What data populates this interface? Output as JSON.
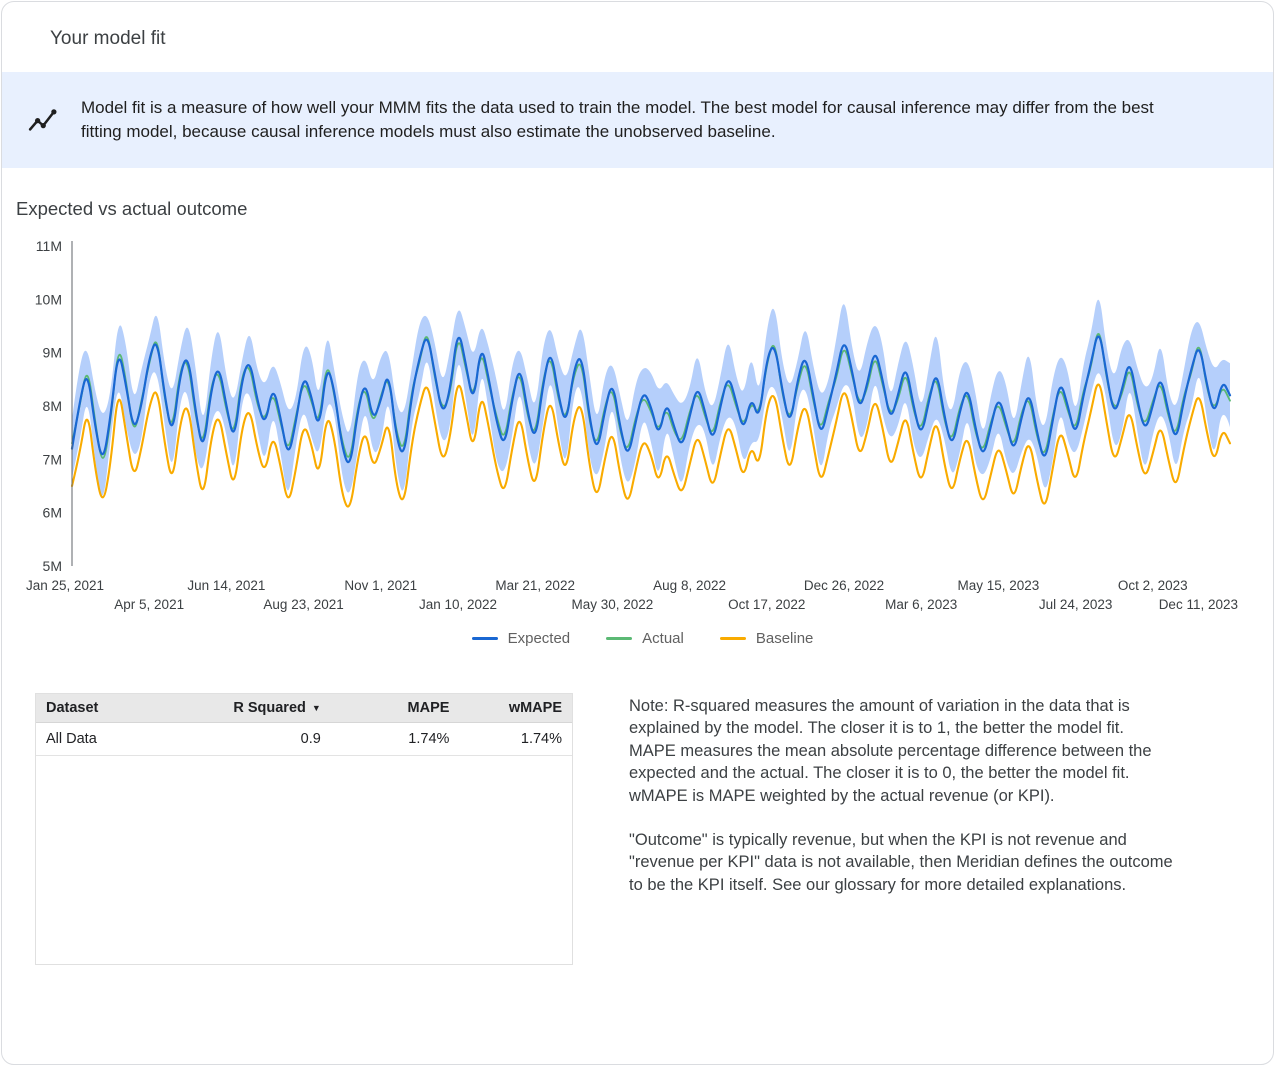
{
  "page": {
    "title": "Your model fit"
  },
  "banner": {
    "icon": "insights-icon",
    "bg_color": "#e8f0fe",
    "text": "Model fit is a measure of how well your MMM fits the data used to train the model. The best model for causal inference may differ from the best fitting model, because causal inference models must also estimate the unobserved baseline."
  },
  "section": {
    "title": "Expected vs actual outcome"
  },
  "chart_data": {
    "type": "line",
    "title": "Expected vs actual outcome",
    "unit": "M",
    "ylim": [
      5,
      11
    ],
    "yticks": [
      "5M",
      "6M",
      "7M",
      "8M",
      "9M",
      "10M",
      "11M"
    ],
    "xtick_step": 10,
    "xtick_labels": [
      "Jan 25, 2021",
      "Apr 5, 2021",
      "Jun 14, 2021",
      "Aug 23, 2021",
      "Nov 1, 2021",
      "Jan 10, 2022",
      "Mar 21, 2022",
      "May 30, 2022",
      "Aug 8, 2022",
      "Oct 17, 2022",
      "Dec 26, 2022",
      "Mar 6, 2023",
      "May 15, 2023",
      "Jul 24, 2023",
      "Oct 2, 2023",
      "Dec 11, 2023"
    ],
    "legend": [
      {
        "name": "Expected",
        "color": "#1967d2"
      },
      {
        "name": "Actual",
        "color": "#5bb974"
      },
      {
        "name": "Baseline",
        "color": "#f9ab00"
      }
    ],
    "ci": {
      "series": "Expected",
      "color": "#a8c7fa",
      "opacity": 0.85,
      "halfwidths_cycle": [
        0.55,
        0.75,
        0.45,
        0.65,
        0.85,
        0.4,
        0.6,
        0.8,
        0.5,
        0.7,
        0.35,
        0.6
      ]
    },
    "series": [
      {
        "name": "Expected",
        "values": [
          7.2,
          8.1,
          8.7,
          7.6,
          6.9,
          7.8,
          9.1,
          8.4,
          7.5,
          8.0,
          8.9,
          9.3,
          8.2,
          7.4,
          8.6,
          9.0,
          7.9,
          7.1,
          8.3,
          8.8,
          8.0,
          7.3,
          8.5,
          8.9,
          8.1,
          7.6,
          8.4,
          7.8,
          7.0,
          7.7,
          8.6,
          8.2,
          7.5,
          8.8,
          8.3,
          7.2,
          6.8,
          7.9,
          8.5,
          7.7,
          8.1,
          8.7,
          7.4,
          7.0,
          8.2,
          8.9,
          9.4,
          8.6,
          7.8,
          8.3,
          9.5,
          8.8,
          8.0,
          9.2,
          8.5,
          7.7,
          7.2,
          8.1,
          8.8,
          7.9,
          7.3,
          8.4,
          9.1,
          8.2,
          7.6,
          8.7,
          9.0,
          7.8,
          7.1,
          7.9,
          8.5,
          7.6,
          7.0,
          7.7,
          8.3,
          8.0,
          7.4,
          8.1,
          7.6,
          7.2,
          7.8,
          8.4,
          7.9,
          7.3,
          8.0,
          8.6,
          8.1,
          7.5,
          8.2,
          7.7,
          8.9,
          9.2,
          8.3,
          7.6,
          8.5,
          9.0,
          8.2,
          7.4,
          8.0,
          8.6,
          9.3,
          8.7,
          7.9,
          8.4,
          9.1,
          8.5,
          7.7,
          8.2,
          8.8,
          8.0,
          7.4,
          8.1,
          8.7,
          7.8,
          7.2,
          7.9,
          8.4,
          7.6,
          7.0,
          7.6,
          8.2,
          7.7,
          7.1,
          7.8,
          8.3,
          7.5,
          6.9,
          7.7,
          8.5,
          8.0,
          7.4,
          8.2,
          8.8,
          9.5,
          8.6,
          7.8,
          8.3,
          8.9,
          8.1,
          7.5,
          8.0,
          8.6,
          7.9,
          7.3,
          8.1,
          8.7,
          9.2,
          8.4,
          7.8,
          8.5,
          8.2
        ]
      },
      {
        "name": "Actual",
        "values": [
          7.3,
          8.0,
          8.8,
          7.7,
          6.8,
          7.7,
          9.2,
          8.5,
          7.4,
          8.1,
          8.8,
          9.4,
          8.1,
          7.5,
          8.7,
          8.9,
          7.8,
          7.2,
          8.4,
          8.7,
          7.9,
          7.4,
          8.6,
          8.8,
          8.0,
          7.7,
          8.3,
          7.7,
          7.1,
          7.8,
          8.5,
          8.1,
          7.6,
          8.9,
          8.2,
          7.3,
          6.9,
          8.0,
          8.4,
          7.6,
          8.2,
          8.6,
          7.5,
          7.1,
          8.3,
          8.8,
          9.5,
          8.5,
          7.9,
          8.2,
          9.4,
          8.7,
          8.1,
          9.1,
          8.4,
          7.8,
          7.3,
          8.2,
          8.7,
          7.8,
          7.4,
          8.5,
          9.0,
          8.1,
          7.7,
          8.6,
          8.9,
          7.7,
          7.2,
          8.0,
          8.4,
          7.5,
          7.1,
          7.8,
          8.2,
          7.9,
          7.5,
          8.0,
          7.5,
          7.3,
          7.9,
          8.3,
          7.8,
          7.4,
          8.1,
          8.5,
          8.0,
          7.6,
          8.1,
          7.8,
          8.8,
          9.3,
          8.2,
          7.7,
          8.4,
          8.9,
          8.1,
          7.5,
          8.1,
          8.5,
          9.2,
          8.6,
          8.0,
          8.3,
          9.0,
          8.4,
          7.8,
          8.1,
          8.7,
          7.9,
          7.5,
          8.2,
          8.6,
          7.7,
          7.3,
          8.0,
          8.3,
          7.5,
          7.1,
          7.7,
          8.1,
          7.6,
          7.2,
          7.9,
          8.2,
          7.4,
          7.0,
          7.8,
          8.4,
          7.9,
          7.5,
          8.3,
          8.7,
          9.6,
          8.5,
          7.9,
          8.2,
          8.8,
          8.0,
          7.6,
          8.1,
          8.5,
          7.8,
          7.4,
          8.2,
          8.6,
          9.3,
          8.3,
          7.9,
          8.4,
          8.1
        ]
      },
      {
        "name": "Baseline",
        "values": [
          6.5,
          7.1,
          8.0,
          6.8,
          6.1,
          6.9,
          8.4,
          7.5,
          6.6,
          7.2,
          8.0,
          8.4,
          7.3,
          6.5,
          7.7,
          8.1,
          7.0,
          6.2,
          7.4,
          7.9,
          7.1,
          6.4,
          7.6,
          8.0,
          7.2,
          6.7,
          7.5,
          6.9,
          6.1,
          6.8,
          7.7,
          7.3,
          6.6,
          7.9,
          7.4,
          6.3,
          6.0,
          7.0,
          7.6,
          6.8,
          7.2,
          7.8,
          6.5,
          6.1,
          7.3,
          8.0,
          8.5,
          7.7,
          6.9,
          7.4,
          8.6,
          7.9,
          7.1,
          8.3,
          7.6,
          6.8,
          6.3,
          7.2,
          7.9,
          7.0,
          6.4,
          7.5,
          8.2,
          7.3,
          6.7,
          7.8,
          8.1,
          6.9,
          6.2,
          7.0,
          7.6,
          6.7,
          6.1,
          6.8,
          7.4,
          7.1,
          6.5,
          7.2,
          6.7,
          6.3,
          6.9,
          7.5,
          7.0,
          6.4,
          7.1,
          7.7,
          7.2,
          6.6,
          7.3,
          6.8,
          8.0,
          8.3,
          7.4,
          6.7,
          7.6,
          8.1,
          7.3,
          6.5,
          7.1,
          7.7,
          8.4,
          7.8,
          7.0,
          7.5,
          8.2,
          7.6,
          6.8,
          7.3,
          7.9,
          7.1,
          6.5,
          7.2,
          7.8,
          6.9,
          6.3,
          7.0,
          7.5,
          6.7,
          6.1,
          6.7,
          7.3,
          6.8,
          6.2,
          6.9,
          7.4,
          6.6,
          6.0,
          6.8,
          7.6,
          7.1,
          6.5,
          7.3,
          7.9,
          8.6,
          7.7,
          6.9,
          7.4,
          8.0,
          7.2,
          6.6,
          7.1,
          7.7,
          7.0,
          6.4,
          7.2,
          7.8,
          8.3,
          7.5,
          6.9,
          7.6,
          7.3
        ]
      }
    ]
  },
  "table": {
    "headers": [
      "Dataset",
      "R Squared",
      "MAPE",
      "wMAPE"
    ],
    "sorted_column": "R Squared",
    "sort_icon": "caret-down-icon",
    "sort_glyph": "▼",
    "rows": [
      [
        "All Data",
        "0.9",
        "1.74%",
        "1.74%"
      ]
    ]
  },
  "notes": {
    "p1": "Note: R-squared measures the amount of variation in the data that is explained by the model. The closer it is to 1, the better the model fit. MAPE measures the mean absolute percentage difference between the expected and the actual. The closer it is to 0, the better the model fit. wMAPE is MAPE weighted by the actual revenue (or KPI).",
    "p2": "\"Outcome\" is typically revenue, but when the KPI is not revenue and \"revenue per KPI\" data is not available, then Meridian defines the outcome to be the KPI itself. See our glossary for more detailed explanations."
  }
}
